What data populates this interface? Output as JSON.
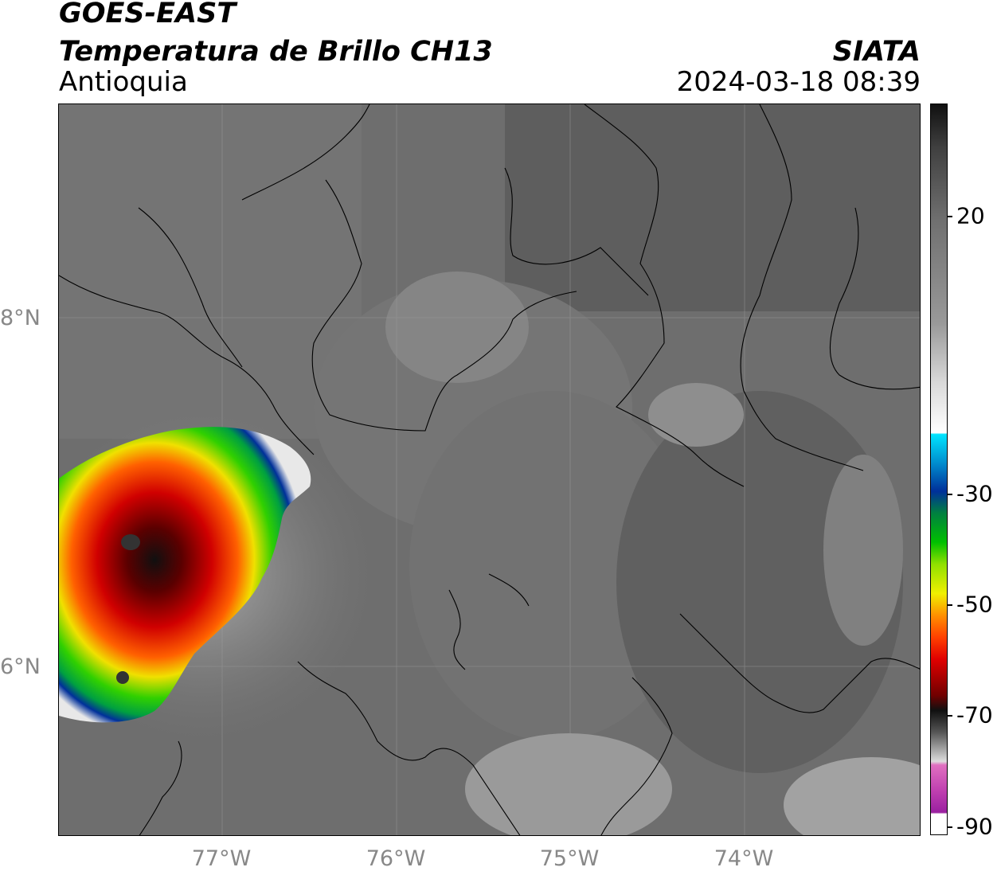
{
  "header": {
    "satellite": "GOES-EAST",
    "product": "Temperatura de Brillo CH13",
    "region": "Antioquia",
    "organization": "SIATA",
    "datetime": "2024-03-18 08:39"
  },
  "map": {
    "latitude_labels": [
      "8°N",
      "6°N"
    ],
    "longitude_labels": [
      "77°W",
      "76°W",
      "75°W",
      "74°W"
    ]
  },
  "colorbar": {
    "tick_labels": [
      "20",
      "-30",
      "-50",
      "-70",
      "-90"
    ],
    "colors": {
      "warm_gray": "#707070",
      "light_gray": "#d8d8d8",
      "cyan": "#00e5ff",
      "blue": "#00309a",
      "green": "#00c000",
      "yellow": "#f0f000",
      "orange": "#ff9000",
      "red": "#e00000",
      "dark_red": "#700000",
      "black": "#101010",
      "pink": "#e070c0",
      "purple": "#9a20a0"
    }
  }
}
